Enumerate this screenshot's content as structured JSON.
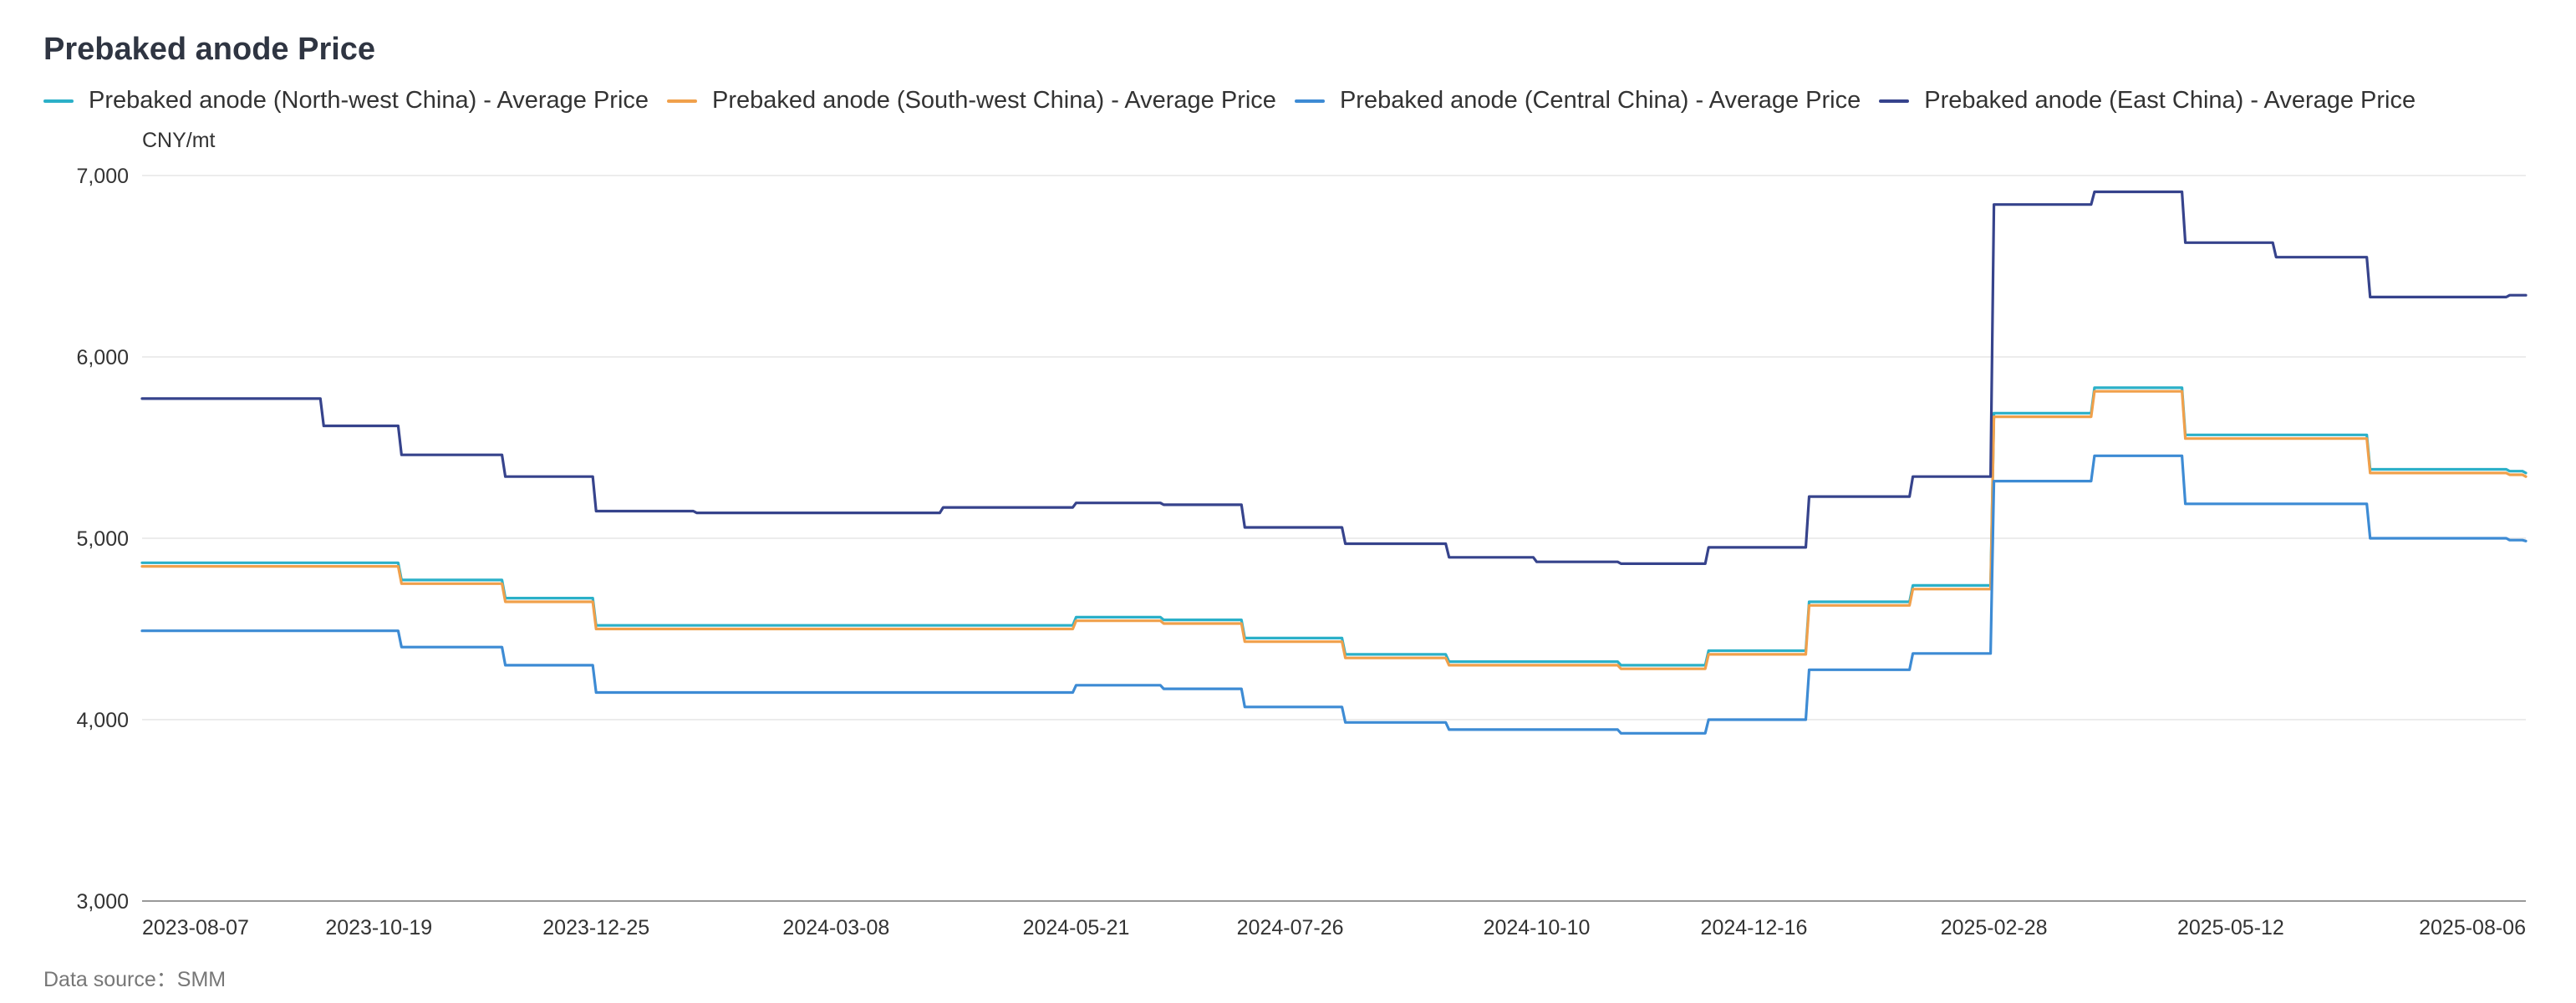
{
  "chart_data": {
    "type": "line",
    "title": "Prebaked anode Price",
    "ylabel": "CNY/mt",
    "ylim": [
      3000,
      7000
    ],
    "yticks": [
      "7,000",
      "6,000",
      "5,000",
      "4,000",
      "3,000"
    ],
    "xticks": [
      "2023-08-07",
      "2023-10-19",
      "2023-12-25",
      "2024-03-08",
      "2024-05-21",
      "2024-07-26",
      "2024-10-10",
      "2024-12-16",
      "2025-02-28",
      "2025-05-12",
      "2025-08-06"
    ],
    "xlim": [
      "2023-08-07",
      "2025-08-11"
    ],
    "grid": true,
    "legend_position": "top-left",
    "line_shape": "step",
    "series": [
      {
        "name": "Prebaked anode (North-west China) - Average Price",
        "color": "#2bb0c8",
        "points": [
          [
            "2023-08-07",
            4865
          ],
          [
            "2023-10-26",
            4770
          ],
          [
            "2023-11-27",
            4670
          ],
          [
            "2023-12-25",
            4520
          ],
          [
            "2024-05-21",
            4565
          ],
          [
            "2024-06-17",
            4550
          ],
          [
            "2024-07-12",
            4450
          ],
          [
            "2024-08-12",
            4360
          ],
          [
            "2024-09-13",
            4320
          ],
          [
            "2024-11-05",
            4300
          ],
          [
            "2024-12-02",
            4380
          ],
          [
            "2025-01-02",
            4650
          ],
          [
            "2025-02-03",
            4740
          ],
          [
            "2025-02-28",
            5690
          ],
          [
            "2025-03-31",
            5830
          ],
          [
            "2025-04-28",
            5570
          ],
          [
            "2025-06-24",
            5380
          ],
          [
            "2025-08-06",
            5370
          ],
          [
            "2025-08-11",
            5360
          ]
        ]
      },
      {
        "name": "Prebaked anode (South-west China) - Average Price",
        "color": "#f0a04b",
        "points": [
          [
            "2023-08-07",
            4845
          ],
          [
            "2023-10-26",
            4750
          ],
          [
            "2023-11-27",
            4650
          ],
          [
            "2023-12-25",
            4500
          ],
          [
            "2024-05-21",
            4545
          ],
          [
            "2024-06-17",
            4530
          ],
          [
            "2024-07-12",
            4430
          ],
          [
            "2024-08-12",
            4340
          ],
          [
            "2024-09-13",
            4300
          ],
          [
            "2024-11-05",
            4280
          ],
          [
            "2024-12-02",
            4360
          ],
          [
            "2025-01-02",
            4630
          ],
          [
            "2025-02-03",
            4720
          ],
          [
            "2025-02-28",
            5670
          ],
          [
            "2025-03-31",
            5810
          ],
          [
            "2025-04-28",
            5550
          ],
          [
            "2025-06-24",
            5360
          ],
          [
            "2025-08-06",
            5350
          ],
          [
            "2025-08-11",
            5340
          ]
        ]
      },
      {
        "name": "Prebaked anode (Central China) - Average Price",
        "color": "#3d8bd4",
        "points": [
          [
            "2023-08-07",
            4490
          ],
          [
            "2023-10-26",
            4400
          ],
          [
            "2023-11-27",
            4300
          ],
          [
            "2023-12-25",
            4150
          ],
          [
            "2024-05-21",
            4190
          ],
          [
            "2024-06-17",
            4170
          ],
          [
            "2024-07-12",
            4070
          ],
          [
            "2024-08-12",
            3985
          ],
          [
            "2024-09-13",
            3945
          ],
          [
            "2024-11-05",
            3925
          ],
          [
            "2024-12-02",
            4000
          ],
          [
            "2025-01-02",
            4275
          ],
          [
            "2025-02-03",
            4365
          ],
          [
            "2025-02-28",
            5315
          ],
          [
            "2025-03-31",
            5455
          ],
          [
            "2025-04-28",
            5190
          ],
          [
            "2025-06-24",
            5000
          ],
          [
            "2025-08-06",
            4990
          ],
          [
            "2025-08-11",
            4985
          ]
        ]
      },
      {
        "name": "Prebaked anode (East China) - Average Price",
        "color": "#36438c",
        "points": [
          [
            "2023-08-07",
            5770
          ],
          [
            "2023-10-02",
            5620
          ],
          [
            "2023-10-26",
            5460
          ],
          [
            "2023-11-27",
            5340
          ],
          [
            "2023-12-25",
            5150
          ],
          [
            "2024-01-25",
            5140
          ],
          [
            "2024-04-10",
            5170
          ],
          [
            "2024-05-21",
            5195
          ],
          [
            "2024-06-17",
            5185
          ],
          [
            "2024-07-12",
            5060
          ],
          [
            "2024-08-12",
            4970
          ],
          [
            "2024-09-13",
            4895
          ],
          [
            "2024-10-10",
            4870
          ],
          [
            "2024-11-05",
            4860
          ],
          [
            "2024-12-02",
            4950
          ],
          [
            "2025-01-02",
            5230
          ],
          [
            "2025-02-03",
            5340
          ],
          [
            "2025-02-28",
            6840
          ],
          [
            "2025-03-31",
            6910
          ],
          [
            "2025-04-28",
            6630
          ],
          [
            "2025-05-26",
            6550
          ],
          [
            "2025-06-24",
            6330
          ],
          [
            "2025-08-06",
            6340
          ],
          [
            "2025-08-11",
            6340
          ]
        ]
      }
    ]
  },
  "footer": {
    "source": "Data source：SMM"
  }
}
